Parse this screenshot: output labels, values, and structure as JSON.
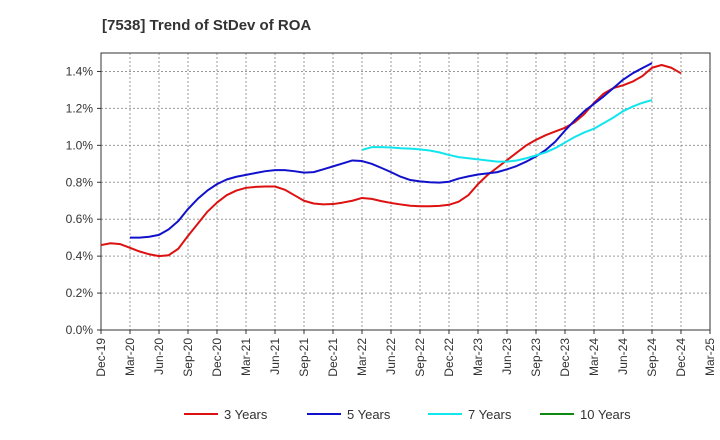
{
  "chart_data": {
    "type": "line",
    "title": "[7538]  Trend of StDev of ROA",
    "xlabel": "",
    "ylabel": "",
    "x_labels": [
      "Dec-19",
      "Mar-20",
      "Jun-20",
      "Sep-20",
      "Dec-20",
      "Mar-21",
      "Jun-21",
      "Sep-21",
      "Dec-21",
      "Mar-22",
      "Jun-22",
      "Sep-22",
      "Dec-22",
      "Mar-23",
      "Jun-23",
      "Sep-23",
      "Dec-23",
      "Mar-24",
      "Jun-24",
      "Sep-24",
      "Dec-24",
      "Mar-25"
    ],
    "y_ticks": [
      0.0,
      0.2,
      0.4,
      0.6,
      0.8,
      1.0,
      1.2,
      1.4
    ],
    "y_tick_labels": [
      "0.0%",
      "0.2%",
      "0.4%",
      "0.6%",
      "0.8%",
      "1.0%",
      "1.2%",
      "1.4%"
    ],
    "ylim": [
      0.0,
      1.5
    ],
    "grid": true,
    "legend_position": "bottom",
    "series": [
      {
        "name": "3 Years",
        "color": "#dd1111",
        "start_index": 0,
        "values": [
          0.46,
          0.47,
          0.465,
          0.445,
          0.425,
          0.41,
          0.4,
          0.405,
          0.44,
          0.51,
          0.575,
          0.64,
          0.69,
          0.73,
          0.755,
          0.77,
          0.775,
          0.777,
          0.777,
          0.76,
          0.73,
          0.7,
          0.685,
          0.68,
          0.682,
          0.69,
          0.7,
          0.715,
          0.71,
          0.698,
          0.688,
          0.68,
          0.673,
          0.67,
          0.67,
          0.672,
          0.678,
          0.695,
          0.73,
          0.79,
          0.84,
          0.88,
          0.92,
          0.96,
          1.0,
          1.03,
          1.055,
          1.075,
          1.095,
          1.125,
          1.17,
          1.23,
          1.28,
          1.31,
          1.325,
          1.345,
          1.375,
          1.42,
          1.435,
          1.42,
          1.39
        ]
      },
      {
        "name": "5 Years",
        "color": "#1111cc",
        "start_index": 3,
        "values": [
          0.5,
          0.5,
          0.505,
          0.515,
          0.545,
          0.59,
          0.655,
          0.71,
          0.755,
          0.79,
          0.815,
          0.83,
          0.84,
          0.85,
          0.86,
          0.866,
          0.866,
          0.86,
          0.852,
          0.855,
          0.87,
          0.886,
          0.902,
          0.918,
          0.915,
          0.9,
          0.878,
          0.855,
          0.83,
          0.812,
          0.805,
          0.8,
          0.798,
          0.803,
          0.82,
          0.832,
          0.842,
          0.848,
          0.855,
          0.87,
          0.888,
          0.912,
          0.94,
          0.975,
          1.02,
          1.08,
          1.135,
          1.185,
          1.225,
          1.265,
          1.31,
          1.355,
          1.39,
          1.418,
          1.445
        ]
      },
      {
        "name": "7 Years",
        "color": "#11e5ee",
        "start_index": 27,
        "values": [
          0.975,
          0.99,
          0.99,
          0.988,
          0.984,
          0.982,
          0.978,
          0.972,
          0.962,
          0.948,
          0.936,
          0.93,
          0.924,
          0.918,
          0.912,
          0.912,
          0.918,
          0.93,
          0.945,
          0.962,
          0.985,
          1.015,
          1.045,
          1.07,
          1.09,
          1.12,
          1.15,
          1.185,
          1.21,
          1.23,
          1.245
        ]
      },
      {
        "name": "10 Years",
        "color": "#118811",
        "start_index": 0,
        "values": []
      }
    ]
  }
}
